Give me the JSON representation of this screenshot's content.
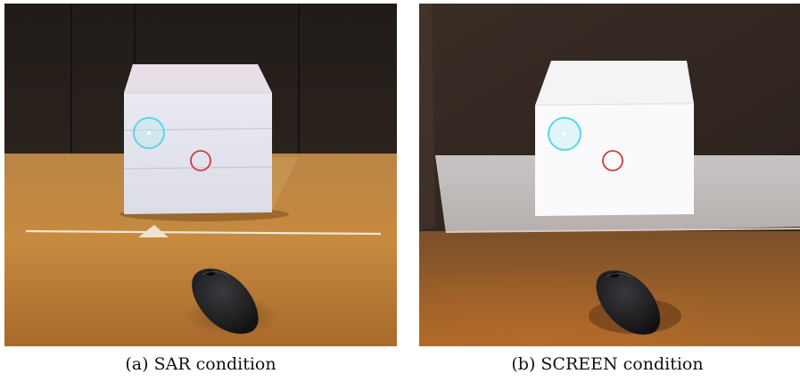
{
  "figures": [
    {
      "id": "a",
      "caption": "(a) SAR condition"
    },
    {
      "id": "b",
      "caption": "(b) SCREEN condition"
    }
  ],
  "colors": {
    "cyan_marker": "#5ad6e8",
    "red_marker": "#d23a3a",
    "table_wood": "#c98a3e",
    "wall_dark": "#1f1b18",
    "foam_white": "#eef0f6",
    "mouse_black": "#1a1a1c"
  }
}
